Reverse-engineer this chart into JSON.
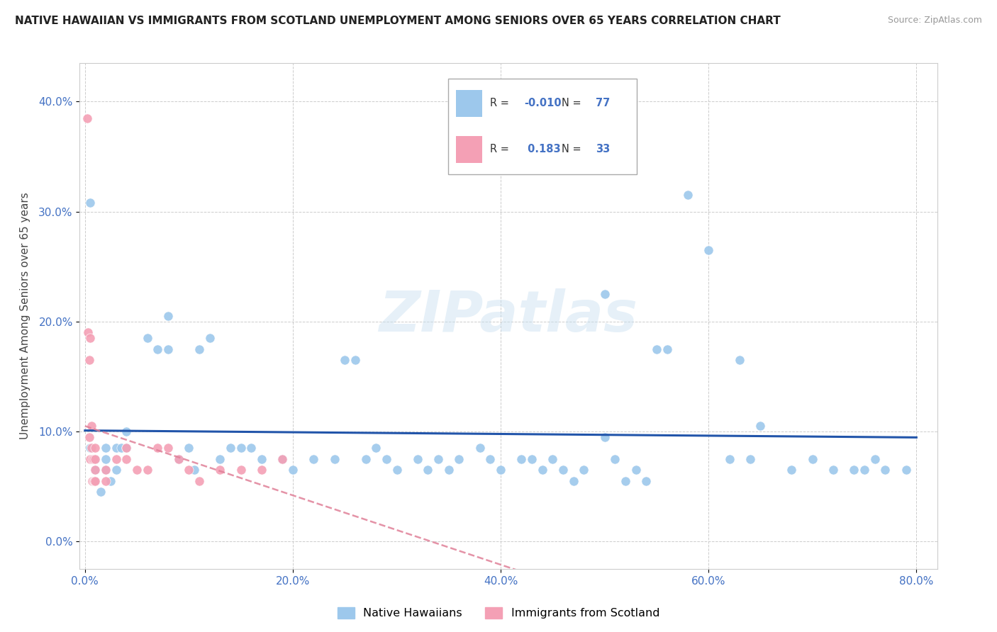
{
  "title": "NATIVE HAWAIIAN VS IMMIGRANTS FROM SCOTLAND UNEMPLOYMENT AMONG SENIORS OVER 65 YEARS CORRELATION CHART",
  "source": "Source: ZipAtlas.com",
  "ylabel": "Unemployment Among Seniors over 65 years",
  "xlim": [
    -0.005,
    0.82
  ],
  "ylim": [
    -0.025,
    0.435
  ],
  "xticks": [
    0.0,
    0.2,
    0.4,
    0.6,
    0.8
  ],
  "xticklabels": [
    "0.0%",
    "20.0%",
    "40.0%",
    "60.0%",
    "80.0%"
  ],
  "yticks": [
    0.0,
    0.1,
    0.2,
    0.3,
    0.4
  ],
  "yticklabels": [
    "0.0%",
    "10.0%",
    "20.0%",
    "30.0%",
    "40.0%"
  ],
  "R_blue": -0.01,
  "N_blue": 77,
  "R_pink": 0.183,
  "N_pink": 33,
  "blue_color": "#9DC8EC",
  "pink_color": "#F4A0B5",
  "trend_blue_color": "#2255AA",
  "trend_pink_color": "#E08098",
  "watermark": "ZIPatlas",
  "blue_x": [
    0.005,
    0.008,
    0.01,
    0.01,
    0.015,
    0.02,
    0.02,
    0.025,
    0.03,
    0.03,
    0.035,
    0.04,
    0.04,
    0.06,
    0.07,
    0.08,
    0.08,
    0.09,
    0.1,
    0.105,
    0.11,
    0.12,
    0.13,
    0.14,
    0.15,
    0.16,
    0.17,
    0.19,
    0.2,
    0.22,
    0.24,
    0.25,
    0.26,
    0.27,
    0.28,
    0.29,
    0.3,
    0.32,
    0.33,
    0.34,
    0.35,
    0.36,
    0.38,
    0.39,
    0.4,
    0.42,
    0.43,
    0.44,
    0.45,
    0.46,
    0.47,
    0.48,
    0.5,
    0.51,
    0.52,
    0.53,
    0.54,
    0.56,
    0.58,
    0.6,
    0.62,
    0.64,
    0.65,
    0.68,
    0.7,
    0.72,
    0.74,
    0.76,
    0.77,
    0.79,
    0.5,
    0.55,
    0.63,
    0.75,
    0.005,
    0.01,
    0.02
  ],
  "blue_y": [
    0.085,
    0.075,
    0.065,
    0.055,
    0.045,
    0.085,
    0.065,
    0.055,
    0.085,
    0.065,
    0.085,
    0.1,
    0.085,
    0.185,
    0.175,
    0.205,
    0.175,
    0.075,
    0.085,
    0.065,
    0.175,
    0.185,
    0.075,
    0.085,
    0.085,
    0.085,
    0.075,
    0.075,
    0.065,
    0.075,
    0.075,
    0.165,
    0.165,
    0.075,
    0.085,
    0.075,
    0.065,
    0.075,
    0.065,
    0.075,
    0.065,
    0.075,
    0.085,
    0.075,
    0.065,
    0.075,
    0.075,
    0.065,
    0.075,
    0.065,
    0.055,
    0.065,
    0.095,
    0.075,
    0.055,
    0.065,
    0.055,
    0.175,
    0.315,
    0.265,
    0.075,
    0.075,
    0.105,
    0.065,
    0.075,
    0.065,
    0.065,
    0.075,
    0.065,
    0.065,
    0.225,
    0.175,
    0.165,
    0.065,
    0.308,
    0.075,
    0.075
  ],
  "pink_x": [
    0.002,
    0.003,
    0.004,
    0.004,
    0.005,
    0.005,
    0.006,
    0.006,
    0.007,
    0.007,
    0.008,
    0.008,
    0.009,
    0.01,
    0.01,
    0.01,
    0.01,
    0.02,
    0.02,
    0.03,
    0.04,
    0.04,
    0.05,
    0.06,
    0.07,
    0.08,
    0.09,
    0.1,
    0.11,
    0.13,
    0.15,
    0.17,
    0.19
  ],
  "pink_y": [
    0.385,
    0.19,
    0.165,
    0.095,
    0.075,
    0.185,
    0.105,
    0.085,
    0.075,
    0.055,
    0.075,
    0.055,
    0.055,
    0.085,
    0.075,
    0.065,
    0.055,
    0.065,
    0.055,
    0.075,
    0.085,
    0.075,
    0.065,
    0.065,
    0.085,
    0.085,
    0.075,
    0.065,
    0.055,
    0.065,
    0.065,
    0.065,
    0.075
  ]
}
